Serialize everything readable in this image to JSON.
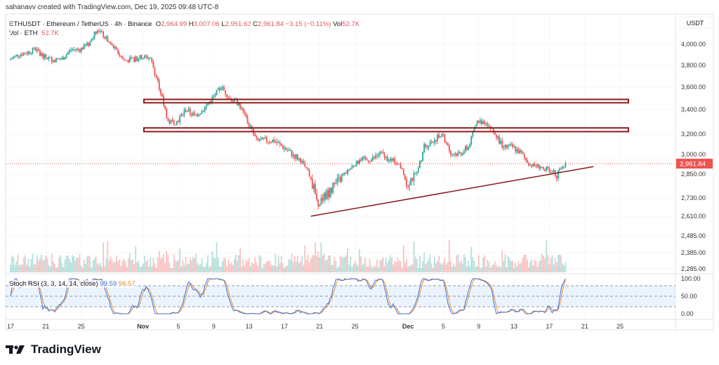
{
  "credit": "sahanavv created with TradingView.com, Dec 19, 2025 09:48 UTC-8",
  "legend": {
    "symbol": "ETHUSDT · Ethereum / TetherUS · 4h · Binance",
    "o_label": "O",
    "open": "2,964.99",
    "h_label": "H",
    "high": "3,007.06",
    "l_label": "L",
    "low": "2,951.62",
    "c_label": "C",
    "close": "2,961.84",
    "change": "−3.15 (−0.11%)",
    "vol_label": "Vol",
    "vol": "52.7K",
    "vol_row_label": "Vol · ETH",
    "vol_row_value": "52.7K"
  },
  "stoch": {
    "label": "Stoch RSI (3, 3, 14, 14, close)",
    "k": "99.59",
    "d": "98.57"
  },
  "logo_text": "TradingView",
  "colors": {
    "up": "#26a69a",
    "down": "#ef5350",
    "zone": "#8b1a1a",
    "k": "#3f6fd8",
    "d": "#e88d2f"
  },
  "chart_data": {
    "type": "candlestick",
    "interval": "4h",
    "currency_label": "USDT",
    "y_ticks": [
      "4,000.00",
      "3,800.00",
      "3,600.00",
      "3,400.00",
      "3,200.00",
      "3,000.00",
      "2,850.00",
      "2,730.00",
      "2,610.00",
      "2,485.00",
      "2,385.00",
      "2,285.00"
    ],
    "y_tick_values": [
      4000,
      3800,
      3600,
      3400,
      3200,
      3000,
      2850,
      2730,
      2610,
      2485,
      2385,
      2285
    ],
    "last_price_label": "2,961.84",
    "x_ticks": [
      "17",
      "21",
      "25",
      "Nov",
      "5",
      "9",
      "13",
      "17",
      "21",
      "25",
      "Dec",
      "5",
      "9",
      "13",
      "17",
      "21",
      "25"
    ],
    "daily_close": {
      "start": "Oct 17",
      "values": [
        3850,
        3900,
        3920,
        3950,
        3880,
        3850,
        3860,
        3950,
        3950,
        4000,
        4150,
        4050,
        3950,
        3850,
        3850,
        3880,
        3870,
        3600,
        3300,
        3300,
        3400,
        3350,
        3400,
        3500,
        3600,
        3500,
        3450,
        3300,
        3150,
        3150,
        3150,
        3100,
        3050,
        3000,
        2850,
        2700,
        2750,
        2800,
        2850,
        2950,
        3000,
        3000,
        3050,
        3000,
        2980,
        2800,
        2850,
        3100,
        3150,
        3200,
        3050,
        3050,
        3100,
        3300,
        3300,
        3200,
        3100,
        3100,
        3050,
        2950,
        2930,
        2900,
        2850,
        2961.84
      ]
    },
    "annotations": [
      {
        "type": "horizontal-zone",
        "low": 3460,
        "high": 3490
      },
      {
        "type": "horizontal-zone",
        "low": 3220,
        "high": 3250
      },
      {
        "type": "trendline",
        "from": [
          "Nov 20",
          2610
        ],
        "to": [
          "Dec 22",
          2930
        ]
      }
    ],
    "stoch_ticks": [
      "100.00",
      "50.00",
      "0.00"
    ],
    "stoch_bands": [
      20,
      80
    ]
  }
}
